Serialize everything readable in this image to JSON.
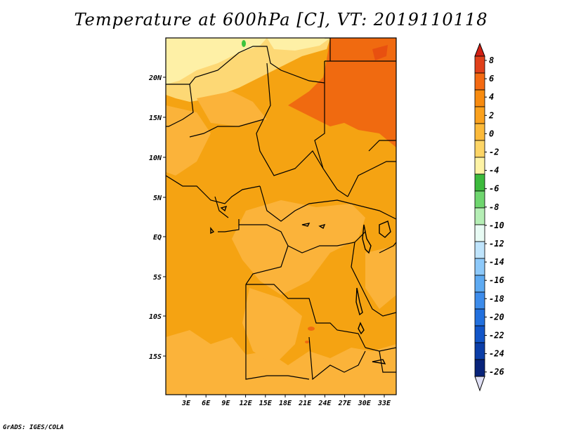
{
  "title": "Temperature at 600hPa [C], VT: 2019110118",
  "footer": "GrADS: IGES/COLA",
  "map": {
    "lon_ticks": [
      "3E",
      "6E",
      "9E",
      "12E",
      "15E",
      "18E",
      "21E",
      "24E",
      "27E",
      "30E",
      "33E"
    ],
    "lat_ticks": [
      "20N",
      "15N",
      "10N",
      "5N",
      "EQ",
      "5S",
      "10S",
      "15S"
    ],
    "lon_range": [
      0,
      35
    ],
    "lat_range": [
      -20,
      25
    ]
  },
  "colorbar": {
    "labels": [
      "8",
      "6",
      "4",
      "2",
      "0",
      "-2",
      "-4",
      "-6",
      "-8",
      "-10",
      "-12",
      "-14",
      "-16",
      "-18",
      "-20",
      "-22",
      "-24",
      "-26"
    ],
    "colors": [
      "#e0401a",
      "#f46a12",
      "#f88b0f",
      "#fba11d",
      "#fcba3a",
      "#fdd566",
      "#fef3a5",
      "#3cba3c",
      "#6fd66f",
      "#b5eeb5",
      "#e8fbf4",
      "#bfe4fc",
      "#8dc9fa",
      "#5daaf2",
      "#3d8ceb",
      "#2270de",
      "#1255c8",
      "#0b3ea8",
      "#08237a"
    ],
    "over_color": "#d22014",
    "under_color": "#e0e0f5"
  },
  "colors": {
    "field_base": "#f5a312",
    "warm_band": "#f06a10",
    "light_band": "#fcc25c",
    "pale_band": "#fde79a",
    "cold_spot": "#3cc43c",
    "border": "#000000"
  }
}
